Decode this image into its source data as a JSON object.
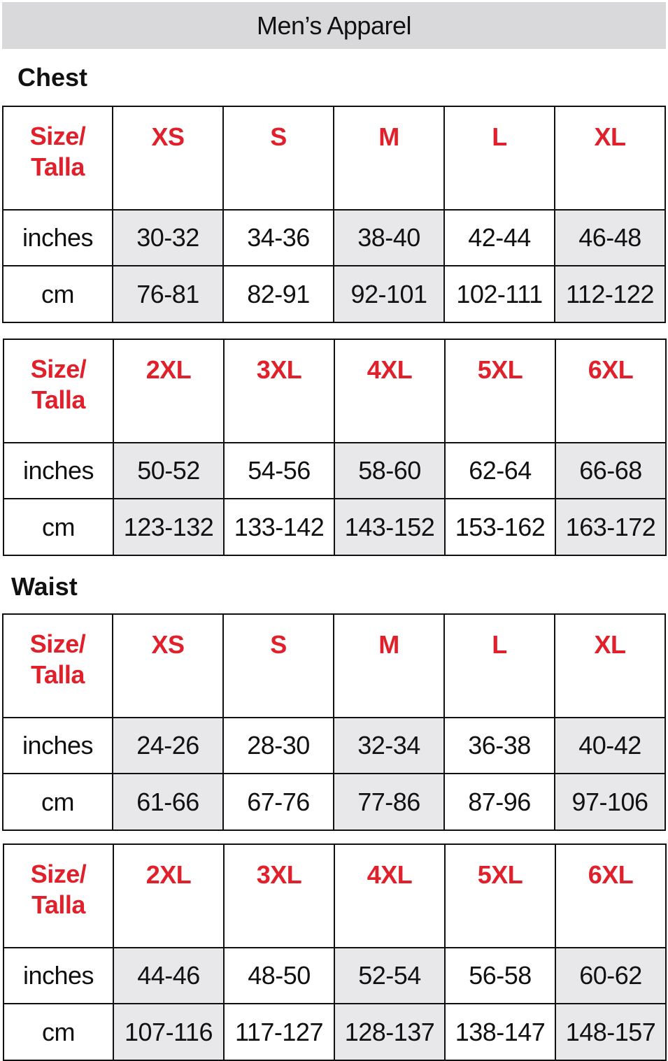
{
  "title": "Men’s Apparel",
  "colors": {
    "header_red": "#e0202a",
    "shade": "#e8e8ea",
    "title_bar": "#d9d9db"
  },
  "sections": [
    {
      "heading": "Chest",
      "tables": [
        {
          "size_label": [
            "Size/",
            "Talla"
          ],
          "sizes": [
            "XS",
            "S",
            "M",
            "L",
            "XL"
          ],
          "inches_label": "inches",
          "inches": [
            "30-32",
            "34-36",
            "38-40",
            "42-44",
            "46-48"
          ],
          "cm_label": "cm",
          "cm": [
            "76-81",
            "82-91",
            "92-101",
            "102-111",
            "112-122"
          ]
        },
        {
          "size_label": [
            "Size/",
            "Talla"
          ],
          "sizes": [
            "2XL",
            "3XL",
            "4XL",
            "5XL",
            "6XL"
          ],
          "inches_label": "inches",
          "inches": [
            "50-52",
            "54-56",
            "58-60",
            "62-64",
            "66-68"
          ],
          "cm_label": "cm",
          "cm": [
            "123-132",
            "133-142",
            "143-152",
            "153-162",
            "163-172"
          ]
        }
      ]
    },
    {
      "heading": "Waist",
      "tables": [
        {
          "size_label": [
            "Size/",
            "Talla"
          ],
          "sizes": [
            "XS",
            "S",
            "M",
            "L",
            "XL"
          ],
          "inches_label": "inches",
          "inches": [
            "24-26",
            "28-30",
            "32-34",
            "36-38",
            "40-42"
          ],
          "cm_label": "cm",
          "cm": [
            "61-66",
            "67-76",
            "77-86",
            "87-96",
            "97-106"
          ]
        },
        {
          "size_label": [
            "Size/",
            "Talla"
          ],
          "sizes": [
            "2XL",
            "3XL",
            "4XL",
            "5XL",
            "6XL"
          ],
          "inches_label": "inches",
          "inches": [
            "44-46",
            "48-50",
            "52-54",
            "56-58",
            "60-62"
          ],
          "cm_label": "cm",
          "cm": [
            "107-116",
            "117-127",
            "128-137",
            "138-147",
            "148-157"
          ]
        }
      ]
    }
  ]
}
